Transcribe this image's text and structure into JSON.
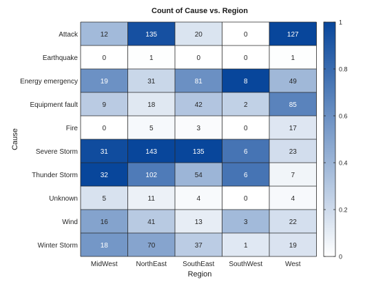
{
  "chart_data": {
    "type": "heatmap",
    "title": "Count of Cause vs. Region",
    "xlabel": "Region",
    "ylabel": "Cause",
    "x_categories": [
      "MidWest",
      "NorthEast",
      "SouthEast",
      "SouthWest",
      "West"
    ],
    "y_categories": [
      "Attack",
      "Earthquake",
      "Energy emergency",
      "Equipment fault",
      "Fire",
      "Severe Storm",
      "Thunder Storm",
      "Unknown",
      "Wind",
      "Winter Storm"
    ],
    "values": [
      [
        12,
        135,
        20,
        0,
        127
      ],
      [
        0,
        1,
        0,
        0,
        1
      ],
      [
        19,
        31,
        81,
        8,
        49
      ],
      [
        9,
        18,
        42,
        2,
        85
      ],
      [
        0,
        5,
        3,
        0,
        17
      ],
      [
        31,
        143,
        135,
        6,
        23
      ],
      [
        32,
        102,
        54,
        6,
        7
      ],
      [
        5,
        11,
        4,
        0,
        4
      ],
      [
        16,
        41,
        13,
        3,
        22
      ],
      [
        18,
        70,
        37,
        1,
        19
      ]
    ],
    "color_normalization": "column",
    "colormap": "sky",
    "colormap_low": "#ffffff",
    "colormap_high": "#08469b",
    "colorbar": {
      "range": [
        0,
        1
      ],
      "ticks": [
        0,
        0.2,
        0.4,
        0.6,
        0.8,
        1
      ],
      "tick_labels": [
        "0",
        "0.2",
        "0.4",
        "0.6",
        "0.8",
        "1"
      ]
    },
    "grid": true,
    "legend": "colorbar-right"
  }
}
